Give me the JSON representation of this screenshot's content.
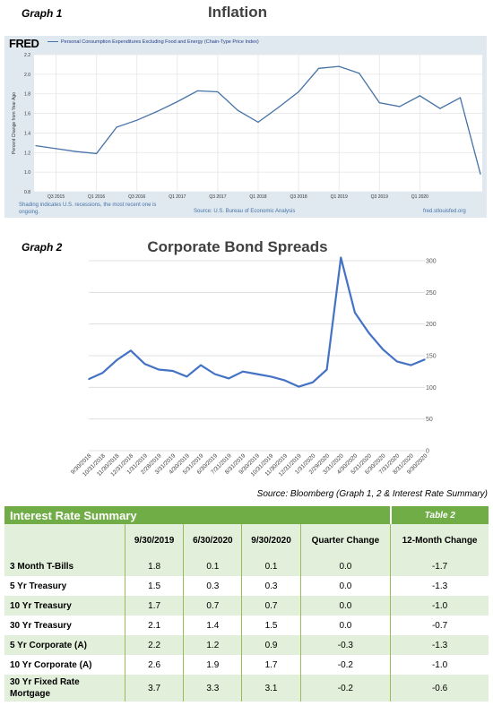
{
  "graph1": {
    "label": "Graph 1",
    "title": "Inflation",
    "fred": {
      "logo": "FRED",
      "legend": "Personal Consumption Expenditures Excluding Food and Energy (Chain-Type Price Index)",
      "note": "Shading indicates U.S. recessions, the most recent one is ongoing.",
      "source": "Source: U.S. Bureau of Economic Analysis",
      "site": "fred.stlouisfed.org"
    }
  },
  "graph2": {
    "label": "Graph 2",
    "title": "Corporate Bond Spreads"
  },
  "source_line": "Source: Bloomberg (Graph 1, 2 & Interest Rate Summary)",
  "chart_data": [
    {
      "type": "line",
      "title": "Inflation",
      "legend": "Personal Consumption Expenditures Excluding Food and Energy (Chain-Type Price Index)",
      "ylabel": "Percent Change from Year Ago",
      "ylim": [
        0.8,
        2.2
      ],
      "yticks": [
        "0.8",
        "1.0",
        "1.2",
        "1.4",
        "1.6",
        "1.8",
        "2.0",
        "2.2"
      ],
      "xticks": [
        "Q3 2015",
        "Q1 2016",
        "Q3 2016",
        "Q1 2017",
        "Q3 2017",
        "Q1 2018",
        "Q3 2018",
        "Q1 2019",
        "Q3 2019",
        "Q1 2020"
      ],
      "grid": true,
      "line_color": "#4572a7",
      "series": [
        {
          "values": [
            1.27,
            1.24,
            1.21,
            1.19,
            1.46,
            1.53,
            1.62,
            1.72,
            1.83,
            1.82,
            1.63,
            1.51,
            1.66,
            1.82,
            2.06,
            2.08,
            2.01,
            1.71,
            1.67,
            1.78,
            1.65,
            1.76,
            0.98
          ]
        }
      ]
    },
    {
      "type": "line",
      "title": "Corporate Bond Spreads",
      "ylim": [
        0,
        300
      ],
      "yticks": [
        "0",
        "50",
        "100",
        "150",
        "200",
        "250",
        "300"
      ],
      "grid": true,
      "line_color": "#4472c4",
      "categories": [
        "9/30/2018",
        "10/31/2018",
        "11/30/2018",
        "12/31/2018",
        "1/31/2019",
        "2/28/2019",
        "3/31/2019",
        "4/30/2019",
        "5/31/2019",
        "6/30/2019",
        "7/31/2019",
        "8/31/2019",
        "9/30/2019",
        "10/31/2019",
        "11/30/2019",
        "12/31/2019",
        "1/31/2020",
        "2/29/2020",
        "3/31/2020",
        "4/30/2020",
        "5/31/2020",
        "6/30/2020",
        "7/31/2020",
        "8/31/2020",
        "9/30/2020"
      ],
      "series": [
        {
          "values": [
            113,
            123,
            143,
            158,
            137,
            128,
            126,
            117,
            135,
            121,
            114,
            125,
            121,
            117,
            111,
            101,
            108,
            128,
            305,
            218,
            186,
            160,
            141,
            135,
            144
          ]
        }
      ]
    }
  ],
  "table": {
    "title": "Interest Rate Summary",
    "tag": "Table 2",
    "columns": [
      "9/30/2019",
      "6/30/2020",
      "9/30/2020",
      "Quarter Change",
      "12-Month Change"
    ],
    "rows": [
      {
        "label": "3 Month T-Bills",
        "values": [
          "1.8",
          "0.1",
          "0.1",
          "0.0",
          "-1.7"
        ]
      },
      {
        "label": "5 Yr Treasury",
        "values": [
          "1.5",
          "0.3",
          "0.3",
          "0.0",
          "-1.3"
        ]
      },
      {
        "label": "10 Yr Treasury",
        "values": [
          "1.7",
          "0.7",
          "0.7",
          "0.0",
          "-1.0"
        ]
      },
      {
        "label": "30 Yr Treasury",
        "values": [
          "2.1",
          "1.4",
          "1.5",
          "0.0",
          "-0.7"
        ]
      },
      {
        "label": "5 Yr Corporate (A)",
        "values": [
          "2.2",
          "1.2",
          "0.9",
          "-0.3",
          "-1.3"
        ]
      },
      {
        "label": "10 Yr Corporate (A)",
        "values": [
          "2.6",
          "1.9",
          "1.7",
          "-0.2",
          "-1.0"
        ]
      },
      {
        "label": "30 Yr Fixed Rate Mortgage",
        "values": [
          "3.7",
          "3.3",
          "3.1",
          "-0.2",
          "-0.6"
        ]
      }
    ]
  }
}
